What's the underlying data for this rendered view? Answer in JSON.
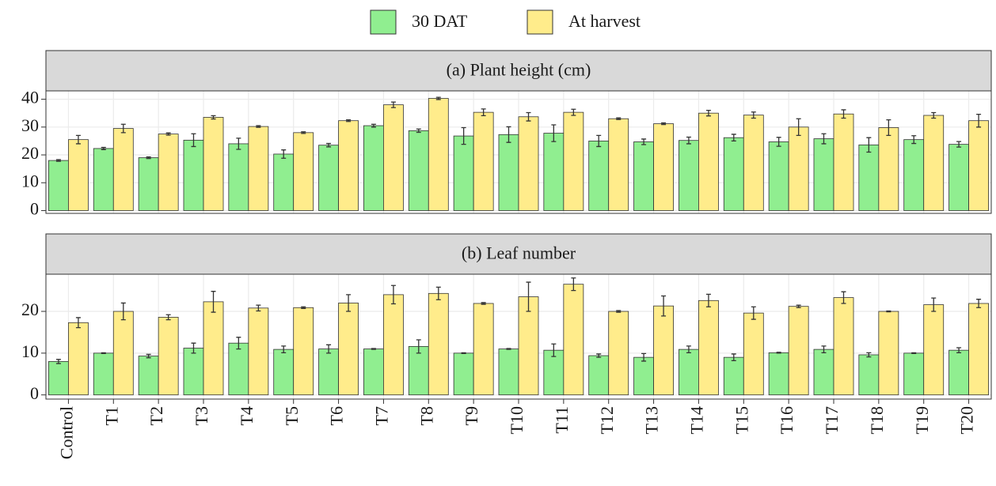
{
  "chart_data": [
    {
      "type": "bar",
      "title": "(a) Plant height (cm)",
      "ylim": [
        -1,
        43
      ],
      "yticks": [
        0,
        10,
        20,
        30,
        40
      ],
      "grid": true,
      "legend": "top",
      "series": [
        {
          "name": "30 DAT",
          "color": "#90ee90",
          "values": [
            18,
            22.3,
            19,
            25.3,
            24,
            20.3,
            23.5,
            30.5,
            28.7,
            26.8,
            27.3,
            27.8,
            25,
            24.7,
            25.2,
            26.2,
            24.7,
            25.8,
            23.6,
            25.5,
            23.8
          ],
          "errors": [
            0.3,
            0.4,
            0.3,
            2.3,
            2,
            1.5,
            0.6,
            0.5,
            0.6,
            3,
            2.8,
            3,
            2,
            1,
            1.2,
            1.2,
            1.6,
            1.8,
            2.6,
            1.4,
            1
          ]
        },
        {
          "name": "At harvest",
          "color": "#ffec8b",
          "values": [
            25.5,
            29.5,
            27.5,
            33.5,
            30.2,
            28,
            32.3,
            38,
            40.3,
            35.3,
            33.7,
            35.3,
            33,
            31.2,
            35,
            34.3,
            30,
            34.7,
            29.8,
            34.2,
            32.3
          ],
          "errors": [
            1.5,
            1.5,
            0.4,
            0.6,
            0.3,
            0.3,
            0.3,
            1,
            0.4,
            1.2,
            1.5,
            1.1,
            0.3,
            0.3,
            1,
            1.1,
            3,
            1.5,
            2.8,
            1,
            2.3
          ]
        }
      ]
    },
    {
      "type": "bar",
      "title": "(b) Leaf number",
      "categories": [
        "Control",
        "T1",
        "T2",
        "T3",
        "T4",
        "T5",
        "T6",
        "T7",
        "T8",
        "T9",
        "T10",
        "T11",
        "T12",
        "T13",
        "T14",
        "T15",
        "T16",
        "T17",
        "T18",
        "T19",
        "T20"
      ],
      "ylim": [
        -1,
        28.9
      ],
      "yticks": [
        0,
        10,
        20
      ],
      "grid": true,
      "series": [
        {
          "color": "#90ee90",
          "values": [
            8,
            10,
            9.3,
            11.2,
            12.4,
            10.9,
            11,
            11,
            11.6,
            10,
            11,
            10.7,
            9.4,
            9,
            10.9,
            9,
            10.1,
            10.9,
            9.6,
            10,
            10.7
          ],
          "errors": [
            0.5,
            0.1,
            0.4,
            1.2,
            1.4,
            0.8,
            1,
            0.1,
            1.6,
            0.1,
            0.1,
            1.5,
            0.4,
            0.9,
            0.8,
            0.8,
            0.1,
            0.8,
            0.5,
            0.1,
            0.6
          ]
        },
        {
          "color": "#ffec8b",
          "values": [
            17.3,
            20,
            18.6,
            22.3,
            20.8,
            20.9,
            22,
            24,
            24.3,
            21.9,
            23.5,
            26.5,
            20,
            21.3,
            22.6,
            19.6,
            21.2,
            23.3,
            20,
            21.6,
            21.9
          ],
          "errors": [
            1.2,
            2,
            0.6,
            2.5,
            0.7,
            0.2,
            2,
            2.2,
            1.5,
            0.2,
            3.5,
            1.5,
            0.2,
            2.4,
            1.5,
            1.5,
            0.3,
            1.4,
            0.1,
            1.6,
            1
          ]
        }
      ]
    }
  ]
}
